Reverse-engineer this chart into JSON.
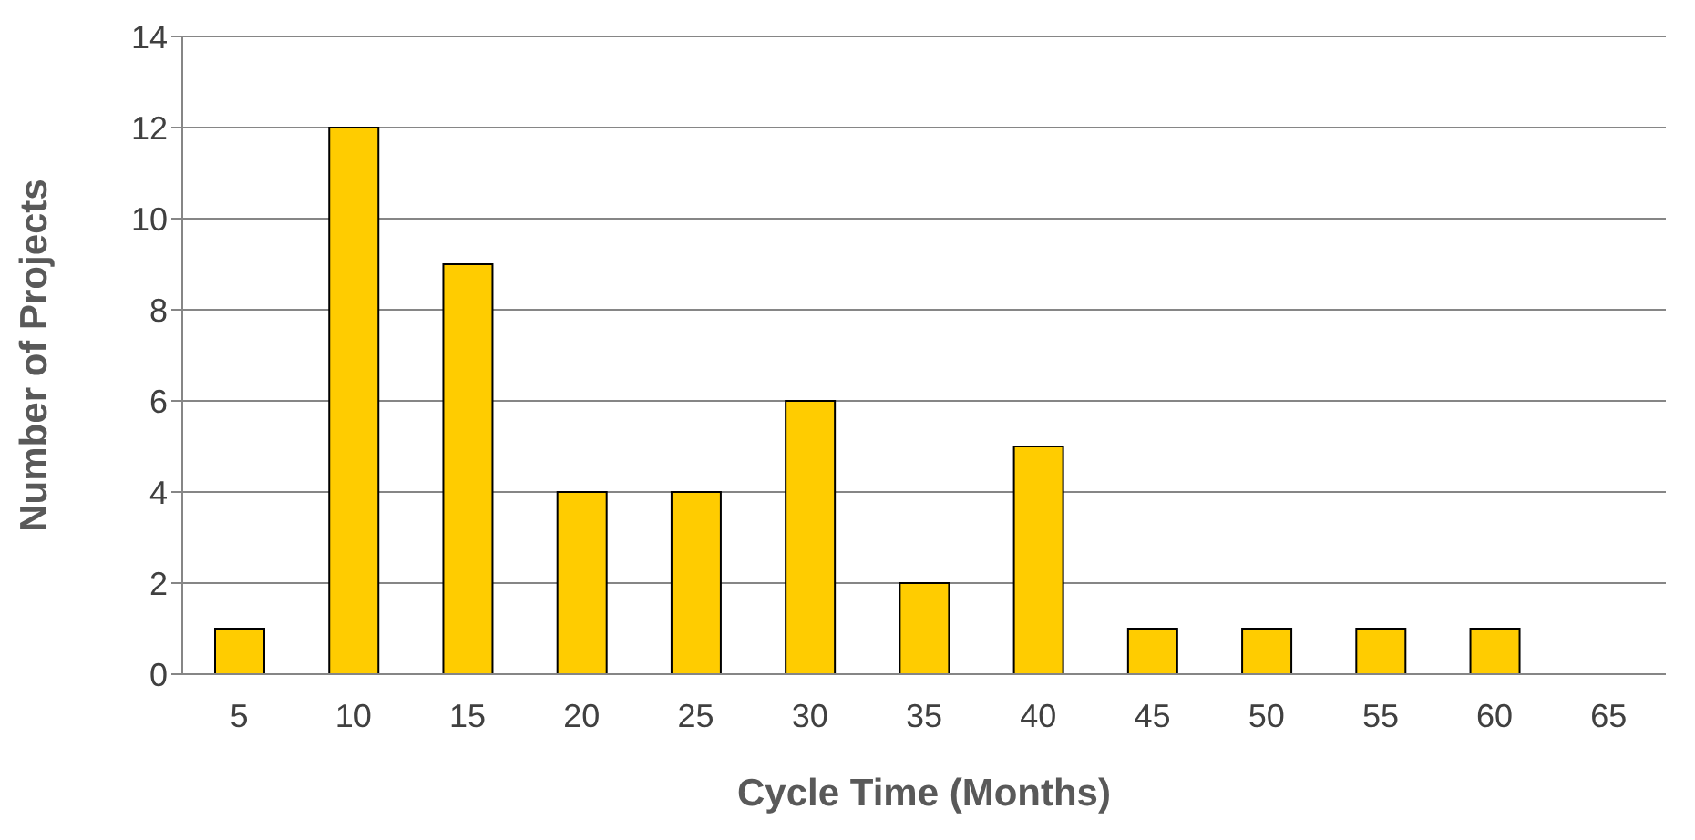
{
  "chart_data": {
    "type": "bar",
    "xlabel": "Cycle Time (Months)",
    "ylabel": "Number of Projects",
    "categories": [
      "5",
      "10",
      "15",
      "20",
      "25",
      "30",
      "35",
      "40",
      "45",
      "50",
      "55",
      "60",
      "65"
    ],
    "values": [
      1,
      12,
      9,
      4,
      4,
      6,
      2,
      5,
      1,
      1,
      1,
      1,
      0
    ],
    "color": "#ffcc00",
    "ylim": [
      0,
      14
    ],
    "yticks": [
      0,
      2,
      4,
      6,
      8,
      10,
      12,
      14
    ],
    "grid": "y",
    "legend": false
  }
}
